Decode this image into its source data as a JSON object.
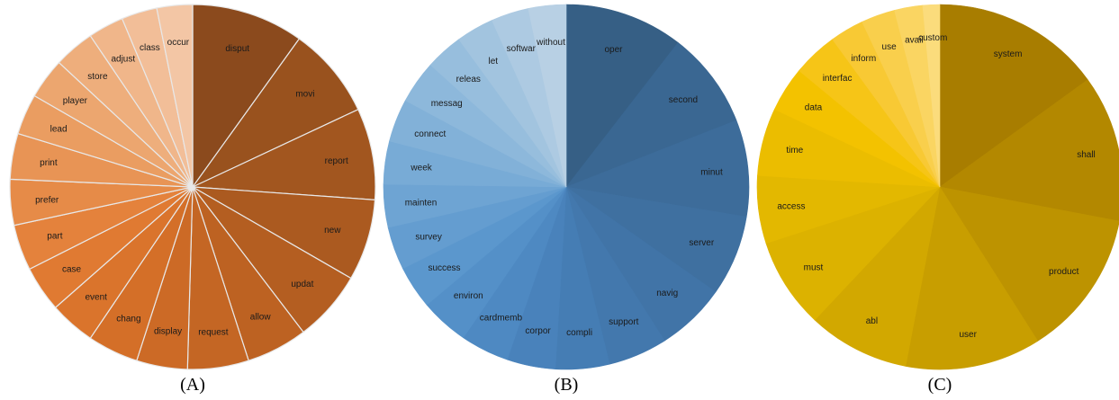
{
  "figure": {
    "panels": [
      {
        "label": "(A)"
      },
      {
        "label": "(B)"
      },
      {
        "label": "(C)"
      }
    ]
  },
  "chart_data": [
    {
      "type": "pie",
      "panel": "(A)",
      "title": "",
      "start_angle_deg": 0,
      "direction": "clockwise",
      "slice_border_color": "#e8e8e8",
      "colors": [
        "#8b4a1d",
        "#99521e",
        "#a2561f",
        "#ab5a20",
        "#b45e21",
        "#bd6222",
        "#c46624",
        "#cc6a26",
        "#d46f28",
        "#da742c",
        "#e07a32",
        "#e4823c",
        "#e68b48",
        "#e89455",
        "#ea9d61",
        "#eca66f",
        "#eeae7c",
        "#f0b68a",
        "#f2be98",
        "#f3c6a5",
        "#f5cdb2",
        "#f7d6c0",
        "#f9dfce"
      ],
      "labels": [
        "disput",
        "movi",
        "report",
        "new",
        "updat",
        "allow",
        "request",
        "display",
        "chang",
        "event",
        "case",
        "part",
        "prefer",
        "print",
        "lead",
        "player",
        "store",
        "adjust",
        "class",
        "occur"
      ],
      "values": [
        11,
        9,
        9,
        8,
        7,
        6,
        6,
        5,
        5,
        4.5,
        4.5,
        4.5,
        4.5,
        4.5,
        4,
        4,
        4,
        3.5,
        3.5,
        3.5
      ]
    },
    {
      "type": "pie",
      "panel": "(B)",
      "title": "",
      "start_angle_deg": 0,
      "direction": "clockwise",
      "slice_border_color": "none",
      "colors": [
        "#365f85",
        "#3a6792",
        "#3d6c9a",
        "#3f70a0",
        "#4174a7",
        "#4378ad",
        "#457db4",
        "#4982bb",
        "#4e89c2",
        "#5490c8",
        "#5b97cd",
        "#649dd0",
        "#6ea4d3",
        "#78abd6",
        "#82b1d8",
        "#8db8db",
        "#97bedd",
        "#a2c4df",
        "#adcae2",
        "#b8d0e4",
        "#c2d6e7"
      ],
      "labels": [
        "oper",
        "second",
        "minut",
        "server",
        "navig",
        "support",
        "compli",
        "corpor",
        "cardmemb",
        "environ",
        "success",
        "survey",
        "mainten",
        "week",
        "connect",
        "messag",
        "releas",
        "let",
        "softwar",
        "without"
      ],
      "values": [
        11,
        9,
        9,
        7.5,
        6.5,
        5.5,
        5,
        4.5,
        4.5,
        4.5,
        4,
        4,
        4,
        4,
        4,
        4,
        3.5,
        3.5,
        3.5,
        3.5
      ]
    },
    {
      "type": "pie",
      "panel": "(C)",
      "title": "",
      "start_angle_deg": 0,
      "direction": "clockwise",
      "slice_border_color": "none",
      "colors": [
        "#a87d00",
        "#b38800",
        "#bd9300",
        "#c89e00",
        "#d2a800",
        "#dcb200",
        "#e3b800",
        "#ebbd00",
        "#f3c200",
        "#f6c517",
        "#f8c934",
        "#f9cf4c",
        "#fad562",
        "#fbdc7c",
        "#fce396",
        "#fde9b0",
        "#fef0c8",
        "#fff6e0"
      ],
      "labels": [
        "system",
        "shall",
        "product",
        "user",
        "abl",
        "must",
        "access",
        "time",
        "data",
        "interfac",
        "inform",
        "use",
        "avail",
        "custom"
      ],
      "values": [
        15,
        13,
        13,
        12,
        9,
        8,
        6,
        6,
        4,
        4,
        3,
        3,
        2.5,
        1.5
      ]
    }
  ]
}
